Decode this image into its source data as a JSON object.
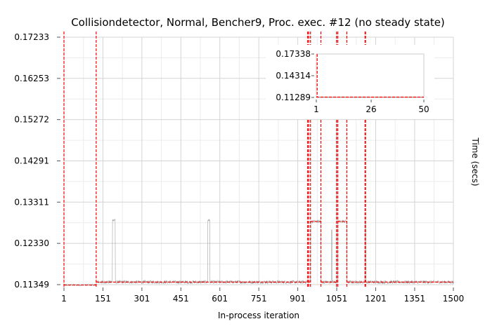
{
  "chart_data": [
    {
      "type": "line",
      "title": "Collisiondetector, Normal, Bencher9, Proc. exec. #12 (no steady state)",
      "xlabel": "In-process iteration",
      "ylabel": "Time (secs)",
      "xlim": [
        1,
        1500
      ],
      "ylim": [
        0.11349,
        0.17233
      ],
      "x_ticks": [
        1,
        151,
        301,
        451,
        601,
        751,
        901,
        1051,
        1201,
        1351,
        1500
      ],
      "y_ticks": [
        0.11349,
        0.1233,
        0.13311,
        0.14291,
        0.15272,
        0.16253,
        0.17233
      ],
      "x_tick_labels": [
        "1",
        "151",
        "301",
        "451",
        "601",
        "751",
        "901",
        "1051",
        "1201",
        "1351",
        "1500"
      ],
      "y_tick_labels": [
        "0.11349",
        "0.12330",
        "0.13311",
        "0.14291",
        "0.15272",
        "0.16253",
        "0.17233"
      ],
      "grid": true,
      "series": [
        {
          "kind": "timings",
          "color": "#999999",
          "segments": [
            {
              "x": [
                1,
                125
              ],
              "mean": 0.1134,
              "noise": 0.0002
            },
            {
              "x": [
                125,
                950
              ],
              "mean": 0.1141,
              "noise": 0.0004
            },
            {
              "x": [
                950,
                990
              ],
              "mean": 0.1285,
              "noise": 0.0004
            },
            {
              "x": [
                990,
                1055
              ],
              "mean": 0.1141,
              "noise": 0.0004
            },
            {
              "x": [
                1055,
                1090
              ],
              "mean": 0.1285,
              "noise": 0.0004
            },
            {
              "x": [
                1090,
                1500
              ],
              "mean": 0.1141,
              "noise": 0.0004
            }
          ],
          "spikes": [
            {
              "x": [
                188,
                198
              ],
              "y": 0.1288
            },
            {
              "x": [
                555,
                562
              ],
              "y": 0.1288
            },
            {
              "x": [
                1031,
                1033
              ],
              "y": 0.1268
            },
            {
              "x": [
                1160,
                1162
              ],
              "y": 0.1288
            }
          ]
        }
      ],
      "changepoints": {
        "color": "#ff0000",
        "x": [
          1,
          125,
          939,
          943,
          950,
          990,
          1050,
          1055,
          1090,
          1160,
          1162
        ]
      },
      "segment_means": {
        "color": "#ff0000",
        "segments": [
          {
            "x": [
              1,
              125
            ],
            "y": 0.1134
          },
          {
            "x": [
              125,
              950
            ],
            "y": 0.1141
          },
          {
            "x": [
              950,
              990
            ],
            "y": 0.1285
          },
          {
            "x": [
              990,
              1055
            ],
            "y": 0.1141
          },
          {
            "x": [
              1055,
              1090
            ],
            "y": 0.1285
          },
          {
            "x": [
              1090,
              1500
            ],
            "y": 0.1141
          }
        ]
      }
    },
    {
      "type": "line",
      "inset": true,
      "xlim": [
        1,
        50
      ],
      "ylim": [
        0.11289,
        0.17338
      ],
      "x_ticks": [
        1,
        26,
        50
      ],
      "y_ticks": [
        0.11289,
        0.14314,
        0.17338
      ],
      "x_tick_labels": [
        "1",
        "26",
        "50"
      ],
      "y_tick_labels": [
        "0.11289",
        "0.14314",
        "0.17338"
      ],
      "series": [
        {
          "kind": "timings",
          "color": "#999999",
          "x": [
            1,
            50
          ],
          "y": [
            0.1134,
            0.1134
          ]
        }
      ],
      "changepoints": {
        "color": "#ff0000",
        "x": [
          1.4
        ]
      },
      "segment_means": {
        "color": "#ff0000",
        "segments": [
          {
            "x": [
              1,
              50
            ],
            "y": 0.1134
          }
        ]
      }
    }
  ]
}
